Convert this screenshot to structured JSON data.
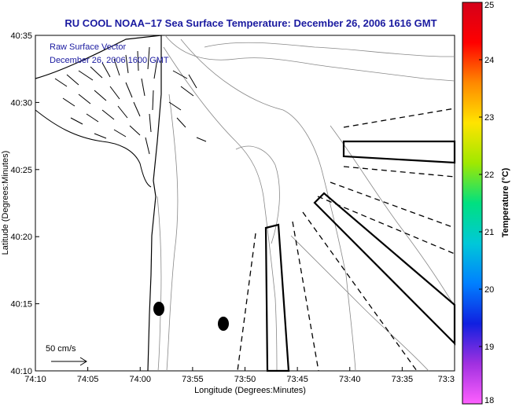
{
  "chart_data": {
    "type": "map",
    "title": "RU COOL  NOAA−17  Sea Surface Temperature:  December 26, 2006 1616 GMT",
    "xlabel": "Longitude (Degrees:Minutes)",
    "ylabel": "Latitude (Degrees:Minutes)",
    "x_ticks": [
      "74:10",
      "74:05",
      "74:00",
      "73:55",
      "73:50",
      "73:45",
      "73:40",
      "73:35",
      "73:3"
    ],
    "y_ticks": [
      "40:10",
      "40:15",
      "40:20",
      "40:25",
      "40:30",
      "40:35"
    ],
    "xlim_minutes_west": [
      10,
      33
    ],
    "ylim_minutes_north": [
      10,
      35
    ],
    "overlay_text": [
      "Raw Surface Vector",
      "December 26, 2006 1600 GMT"
    ],
    "scale_label": "50 cm/s",
    "colorbar": {
      "label": "Temperature (°C)",
      "ticks": [
        "25",
        "24",
        "23",
        "22",
        "21",
        "20",
        "19",
        "18"
      ],
      "range": [
        18,
        25
      ],
      "colors": [
        "#d4001a",
        "#ff0000",
        "#ff8800",
        "#ffe400",
        "#a0e800",
        "#00e080",
        "#00c8d8",
        "#0080ff",
        "#1020e0",
        "#a030e0",
        "#ff60ff"
      ]
    }
  }
}
